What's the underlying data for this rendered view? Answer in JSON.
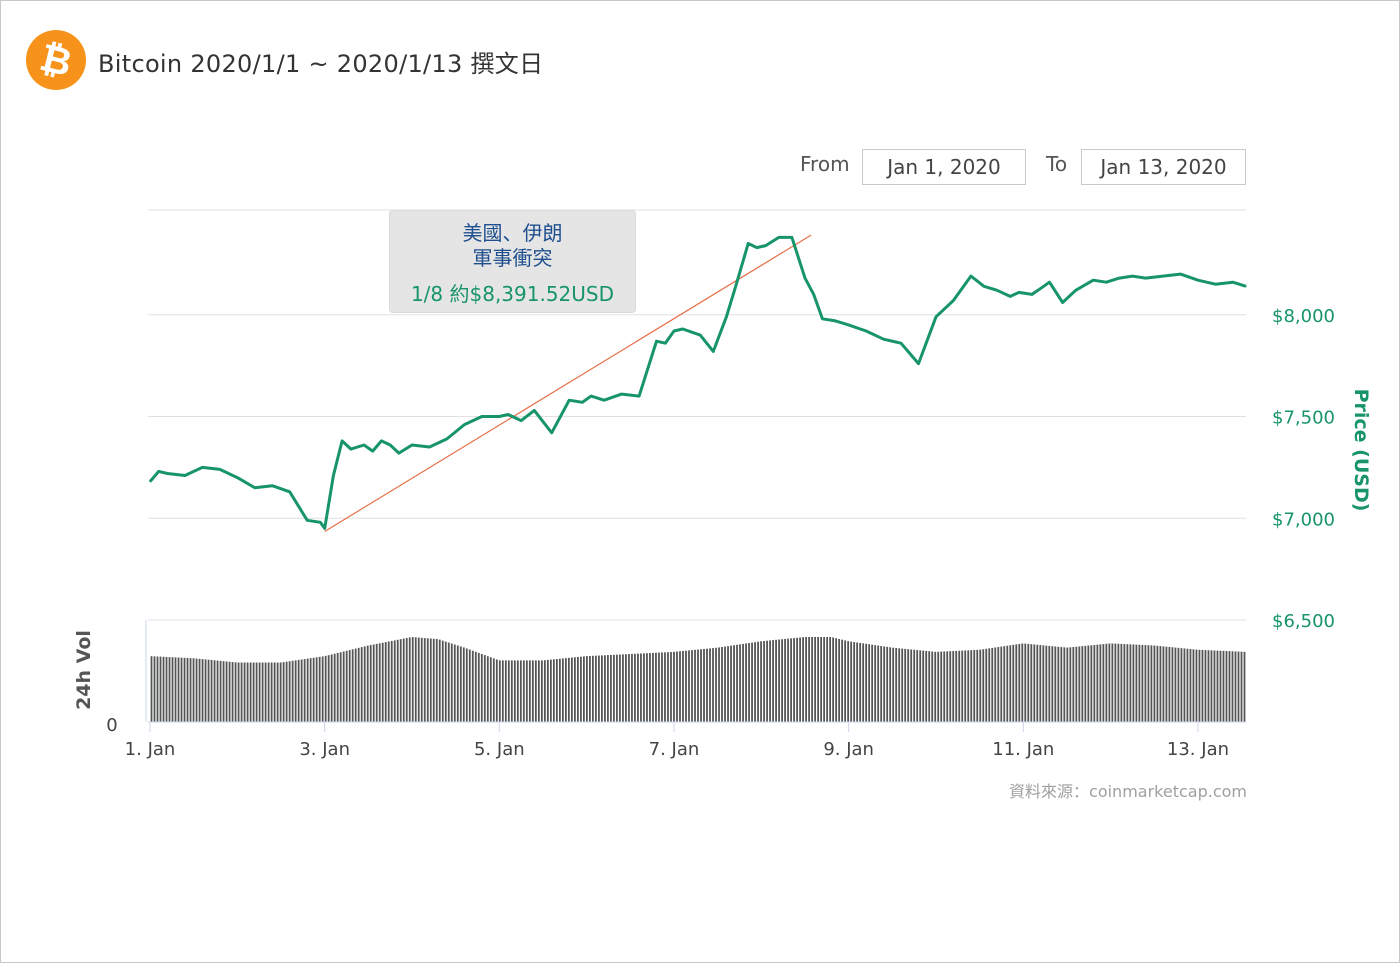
{
  "header": {
    "icon": "bitcoin-icon",
    "title": "Bitcoin 2020/1/1 ~ 2020/1/13 撰文日"
  },
  "date_range": {
    "from_label": "From",
    "from_value": "Jan 1, 2020",
    "to_label": "To",
    "to_value": "Jan 13, 2020"
  },
  "annotation": {
    "line1": "美國、伊朗",
    "line2": "軍事衝突",
    "value": "1/8  約$8,391.52USD"
  },
  "source": "資料來源：coinmarketcap.com",
  "colors": {
    "price_line": "#17946a",
    "trend_line": "#e8704a",
    "volume_bar": "#555555",
    "bitcoin": "#f7931a"
  },
  "chart_data": {
    "type": "line",
    "title": "Bitcoin 2020/1/1 ~ 2020/1/13 撰文日",
    "ylabel": "Price (USD)",
    "vol_label": "24h Vol",
    "vol_zero_label": "0",
    "ylim": [
      6500,
      8500
    ],
    "y_ticks": [
      6500,
      7000,
      7500,
      8000
    ],
    "y_tick_labels": [
      "$6,500",
      "$7,000",
      "$7,500",
      "$8,000"
    ],
    "xlim": [
      1.0,
      13.55
    ],
    "x_ticks": [
      1,
      3,
      5,
      7,
      9,
      11,
      13
    ],
    "x_tick_labels": [
      "1. Jan",
      "3. Jan",
      "5. Jan",
      "7. Jan",
      "9. Jan",
      "11. Jan",
      "13. Jan"
    ],
    "grid": true,
    "series": [
      {
        "type": "line",
        "x": [
          1.0,
          1.1,
          1.2,
          1.4,
          1.6,
          1.8,
          2.0,
          2.2,
          2.4,
          2.6,
          2.8,
          2.95,
          3.0,
          3.1,
          3.2,
          3.3,
          3.45,
          3.55,
          3.65,
          3.75,
          3.85,
          4.0,
          4.2,
          4.4,
          4.6,
          4.8,
          5.0,
          5.1,
          5.25,
          5.4,
          5.6,
          5.8,
          5.95,
          6.05,
          6.2,
          6.4,
          6.6,
          6.8,
          6.9,
          7.0,
          7.1,
          7.3,
          7.45,
          7.6,
          7.7,
          7.85,
          7.95,
          8.05,
          8.2,
          8.35,
          8.5,
          8.6,
          8.7,
          8.85,
          9.0,
          9.2,
          9.4,
          9.6,
          9.8,
          10.0,
          10.2,
          10.4,
          10.55,
          10.7,
          10.85,
          10.95,
          11.1,
          11.2,
          11.3,
          11.45,
          11.6,
          11.8,
          11.95,
          12.1,
          12.25,
          12.4,
          12.6,
          12.8,
          13.0,
          13.2,
          13.4,
          13.55
        ],
        "y": [
          7180,
          7230,
          7220,
          7210,
          7250,
          7240,
          7200,
          7150,
          7160,
          7130,
          6990,
          6980,
          6950,
          7210,
          7380,
          7340,
          7360,
          7330,
          7380,
          7360,
          7320,
          7360,
          7350,
          7390,
          7460,
          7500,
          7500,
          7510,
          7480,
          7530,
          7420,
          7580,
          7570,
          7600,
          7580,
          7610,
          7600,
          7870,
          7860,
          7920,
          7930,
          7900,
          7820,
          7990,
          8130,
          8350,
          8330,
          8340,
          8380,
          8380,
          8180,
          8100,
          7980,
          7970,
          7950,
          7920,
          7880,
          7860,
          7760,
          7990,
          8070,
          8190,
          8140,
          8120,
          8090,
          8110,
          8100,
          8130,
          8160,
          8060,
          8120,
          8170,
          8160,
          8180,
          8190,
          8180,
          8190,
          8200,
          8170,
          8150,
          8160,
          8140
        ]
      },
      {
        "type": "trend",
        "x": [
          3.0,
          8.57
        ],
        "y": [
          6935,
          8391.52
        ]
      }
    ],
    "volume": {
      "x": [
        1.0,
        1.5,
        2.0,
        2.5,
        3.0,
        3.5,
        4.0,
        4.3,
        4.6,
        5.0,
        5.5,
        6.0,
        6.5,
        7.0,
        7.5,
        8.0,
        8.5,
        8.8,
        9.0,
        9.5,
        10.0,
        10.5,
        11.0,
        11.5,
        12.0,
        12.5,
        13.0,
        13.55
      ],
      "relative": [
        0.62,
        0.6,
        0.56,
        0.56,
        0.62,
        0.72,
        0.8,
        0.78,
        0.7,
        0.58,
        0.58,
        0.62,
        0.64,
        0.66,
        0.7,
        0.76,
        0.8,
        0.8,
        0.76,
        0.7,
        0.66,
        0.68,
        0.74,
        0.7,
        0.74,
        0.72,
        0.68,
        0.66
      ]
    }
  }
}
